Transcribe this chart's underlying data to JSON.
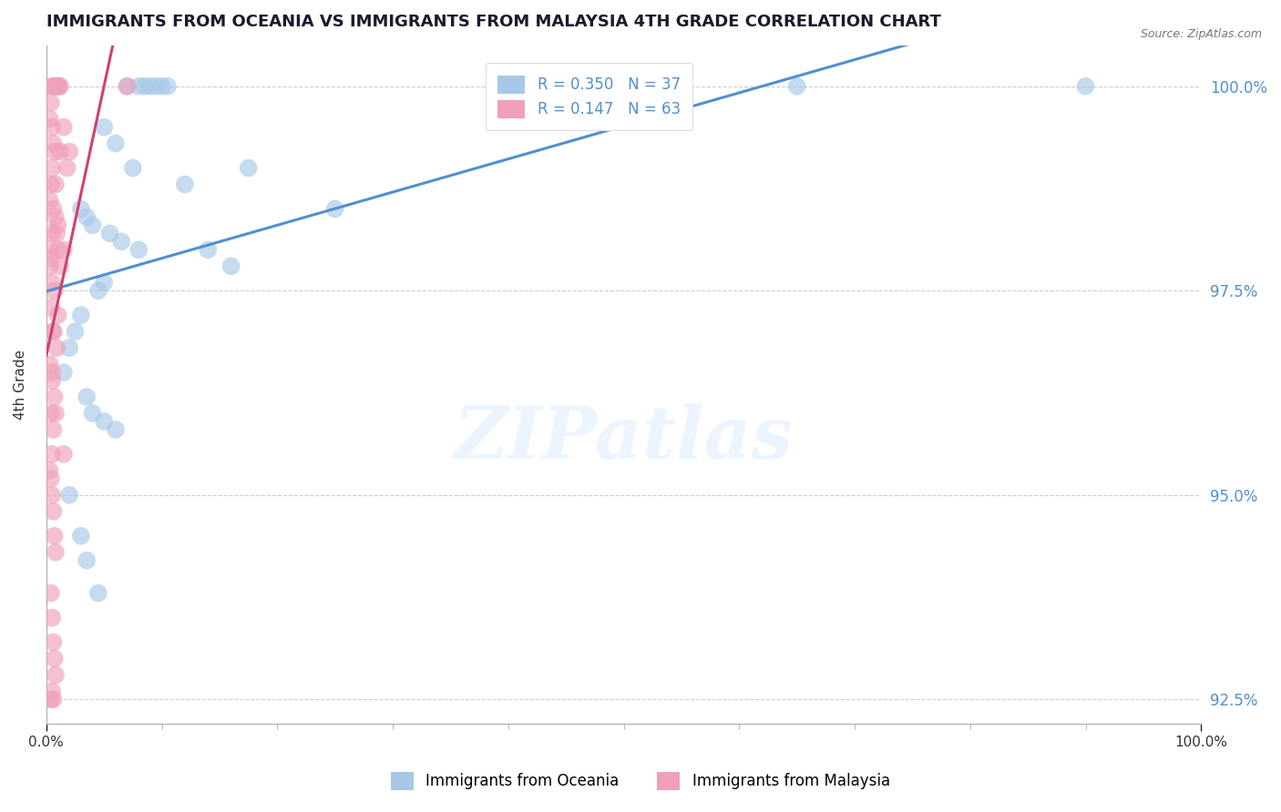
{
  "title": "IMMIGRANTS FROM OCEANIA VS IMMIGRANTS FROM MALAYSIA 4TH GRADE CORRELATION CHART",
  "source": "Source: ZipAtlas.com",
  "ylabel": "4th Grade",
  "legend_blue_label": "Immigrants from Oceania",
  "legend_pink_label": "Immigrants from Malaysia",
  "R_blue": 0.35,
  "N_blue": 37,
  "R_pink": 0.147,
  "N_pink": 63,
  "color_blue": "#a8c8e8",
  "color_pink": "#f0a0b8",
  "line_color_blue": "#5090d0",
  "line_color_pink": "#d04070",
  "background": "#ffffff",
  "title_color": "#1a1a2e",
  "blue_scatter_x": [
    0.07,
    0.08,
    0.085,
    0.09,
    0.095,
    0.1,
    0.105,
    0.05,
    0.06,
    0.075,
    0.12,
    0.03,
    0.035,
    0.04,
    0.055,
    0.065,
    0.08,
    0.14,
    0.25,
    0.65,
    0.9,
    0.045,
    0.05,
    0.03,
    0.025,
    0.02,
    0.015,
    0.035,
    0.04,
    0.05,
    0.06,
    0.16,
    0.035,
    0.045,
    0.175,
    0.02,
    0.03
  ],
  "blue_scatter_y": [
    100.0,
    100.0,
    100.0,
    100.0,
    100.0,
    100.0,
    100.0,
    99.5,
    99.3,
    99.0,
    98.8,
    98.5,
    98.4,
    98.3,
    98.2,
    98.1,
    98.0,
    98.0,
    98.5,
    100.0,
    100.0,
    97.5,
    97.6,
    97.2,
    97.0,
    96.8,
    96.5,
    96.2,
    96.0,
    95.9,
    95.8,
    97.8,
    94.2,
    93.8,
    99.0,
    95.0,
    94.5
  ],
  "pink_scatter_x": [
    0.005,
    0.006,
    0.007,
    0.008,
    0.009,
    0.01,
    0.011,
    0.012,
    0.004,
    0.003,
    0.005,
    0.006,
    0.007,
    0.005,
    0.004,
    0.003,
    0.006,
    0.008,
    0.01,
    0.005,
    0.003,
    0.004,
    0.015,
    0.012,
    0.008,
    0.003,
    0.005,
    0.007,
    0.004,
    0.01,
    0.006,
    0.009,
    0.003,
    0.005,
    0.007,
    0.018,
    0.02,
    0.004,
    0.006,
    0.015,
    0.005,
    0.003,
    0.004,
    0.005,
    0.006,
    0.07,
    0.007,
    0.008,
    0.004,
    0.005,
    0.006,
    0.007,
    0.008,
    0.005,
    0.006,
    0.004,
    0.009,
    0.01,
    0.012,
    0.006,
    0.005,
    0.008,
    0.015
  ],
  "pink_scatter_y": [
    100.0,
    100.0,
    100.0,
    100.0,
    100.0,
    100.0,
    100.0,
    100.0,
    99.8,
    99.6,
    99.5,
    99.3,
    99.2,
    99.0,
    98.8,
    98.6,
    98.5,
    98.4,
    98.3,
    98.2,
    98.0,
    97.9,
    99.5,
    99.2,
    98.8,
    97.8,
    97.6,
    97.5,
    97.3,
    97.2,
    97.0,
    96.8,
    96.6,
    96.4,
    96.2,
    99.0,
    99.2,
    96.0,
    95.8,
    98.0,
    95.5,
    95.3,
    95.2,
    95.0,
    94.8,
    100.0,
    94.5,
    94.3,
    93.8,
    93.5,
    93.2,
    93.0,
    92.8,
    92.6,
    92.5,
    92.5,
    98.2,
    98.0,
    97.8,
    97.0,
    96.5,
    96.0,
    95.5
  ],
  "xlim": [
    0.0,
    1.0
  ],
  "ylim": [
    92.2,
    100.5
  ],
  "y_ticks": [
    92.5,
    95.0,
    97.5,
    100.0
  ]
}
